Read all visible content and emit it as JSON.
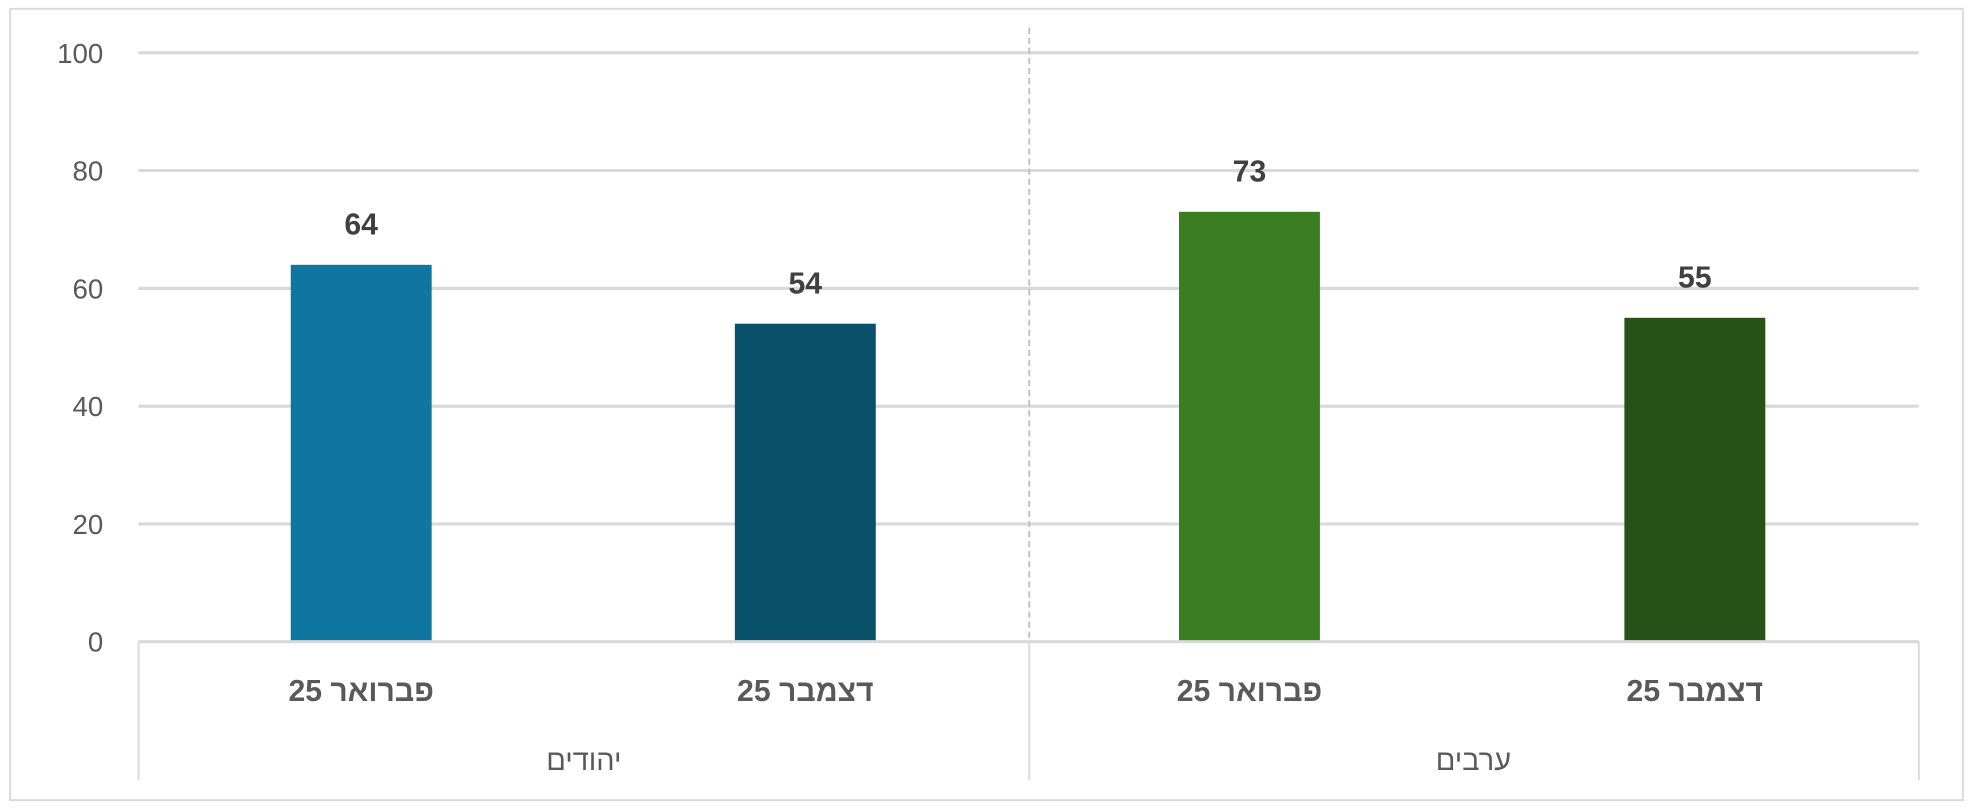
{
  "chart_data": {
    "type": "bar",
    "groups": [
      {
        "name": "יהודים",
        "categories": [
          "פברואר 25",
          "דצמבר 25"
        ],
        "values": [
          64,
          54
        ],
        "colors": [
          "#0e76a0",
          "#09506a"
        ]
      },
      {
        "name": "ערבים",
        "categories": [
          "פברואר 25",
          "דצמבר 25"
        ],
        "values": [
          73,
          55
        ],
        "colors": [
          "#3b7d23",
          "#265218"
        ]
      }
    ],
    "ylim": [
      0,
      100
    ],
    "yticks": [
      "0",
      "20",
      "40",
      "60",
      "80",
      "100"
    ],
    "grid": true,
    "data_labels": [
      "64",
      "54",
      "73",
      "55"
    ]
  }
}
